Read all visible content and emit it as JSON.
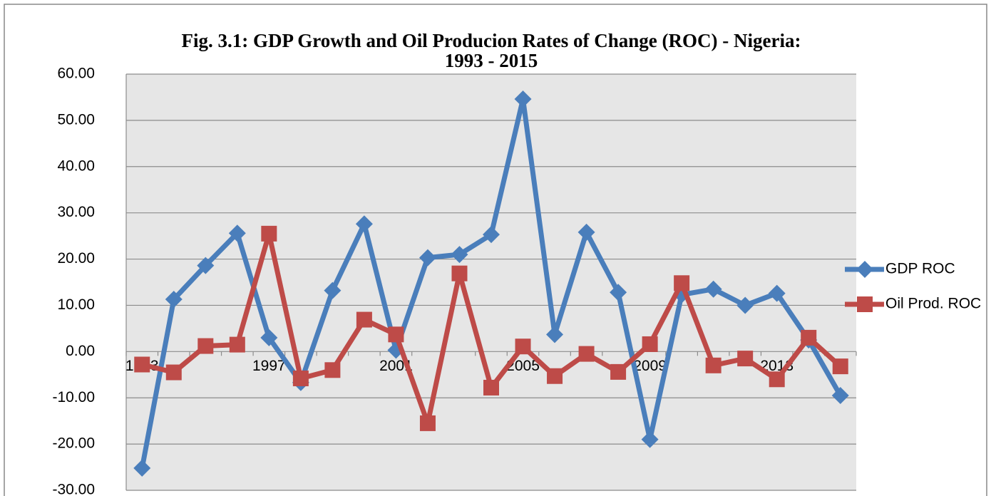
{
  "chart_data": {
    "type": "line",
    "title": [
      "Fig. 3.1: GDP Growth and Oil Producion Rates of Change (ROC) - Nigeria:",
      "1993 - 2015"
    ],
    "categories": [
      "1993",
      null,
      null,
      null,
      "1997",
      null,
      null,
      null,
      "2001",
      null,
      null,
      null,
      "2005",
      null,
      null,
      null,
      "2009",
      null,
      null,
      null,
      "2013",
      null,
      null
    ],
    "series": [
      {
        "name": "GDP ROC",
        "color": "#4a7ebb",
        "marker": "diamond",
        "values": [
          -25.2,
          11.3,
          18.6,
          25.6,
          3.0,
          -6.7,
          13.2,
          27.6,
          0.3,
          20.3,
          21.0,
          25.3,
          54.6,
          3.7,
          25.8,
          12.8,
          -19.0,
          12.3,
          13.5,
          10.0,
          12.6,
          2.5,
          -9.5
        ]
      },
      {
        "name": "Oil Prod. ROC",
        "color": "#be4b48",
        "marker": "square",
        "values": [
          -2.8,
          -4.5,
          1.2,
          1.5,
          25.5,
          -5.8,
          -4.0,
          6.9,
          3.7,
          -15.5,
          16.9,
          -7.8,
          1.1,
          -5.3,
          -0.5,
          -4.4,
          1.6,
          14.8,
          -3.0,
          -1.5,
          -6.0,
          3.0,
          -3.2
        ]
      }
    ],
    "ylim": [
      -30,
      60
    ],
    "yticks": [
      {
        "value": -30,
        "label": "-30.00"
      },
      {
        "value": -20,
        "label": "-20.00"
      },
      {
        "value": -10,
        "label": "-10.00"
      },
      {
        "value": 0,
        "label": "0.00"
      },
      {
        "value": 10,
        "label": "10.00"
      },
      {
        "value": 20,
        "label": "20.00"
      },
      {
        "value": 30,
        "label": "30.00"
      },
      {
        "value": 40,
        "label": "40.00"
      },
      {
        "value": 50,
        "label": "50.00"
      },
      {
        "value": 60,
        "label": "60.00"
      }
    ],
    "grid": true,
    "legend": "right"
  }
}
